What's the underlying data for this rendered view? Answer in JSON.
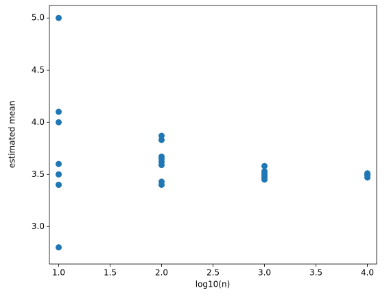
{
  "chart_data": {
    "type": "scatter",
    "xlabel": "log10(n)",
    "ylabel": "estimated mean",
    "x": [
      1,
      1,
      1,
      1,
      1,
      1,
      1,
      1,
      1,
      2,
      2,
      2,
      2,
      2,
      2,
      2,
      2,
      3,
      3,
      3,
      3,
      3,
      3,
      4,
      4,
      4,
      4
    ],
    "values": [
      5.0,
      4.1,
      4.0,
      3.6,
      3.5,
      3.5,
      3.4,
      3.4,
      2.8,
      3.87,
      3.83,
      3.67,
      3.65,
      3.62,
      3.59,
      3.43,
      3.4,
      3.58,
      3.53,
      3.51,
      3.49,
      3.47,
      3.45,
      3.51,
      3.5,
      3.49,
      3.47
    ],
    "color": "#1f77b4",
    "xlim": [
      0.91,
      4.09
    ],
    "ylim": [
      2.64,
      5.12
    ],
    "xticks": [
      {
        "value": 1,
        "label": "1.0"
      },
      1.5,
      {
        "value": 2,
        "label": "2.0"
      },
      2.5,
      {
        "value": 3,
        "label": "3.0"
      },
      3.5,
      {
        "value": 4,
        "label": "4.0"
      }
    ],
    "yticks": [
      {
        "value": 3,
        "label": "3.0"
      },
      3.5,
      {
        "value": 4,
        "label": "4.0"
      },
      4.5,
      {
        "value": 5,
        "label": "5.0"
      }
    ]
  }
}
